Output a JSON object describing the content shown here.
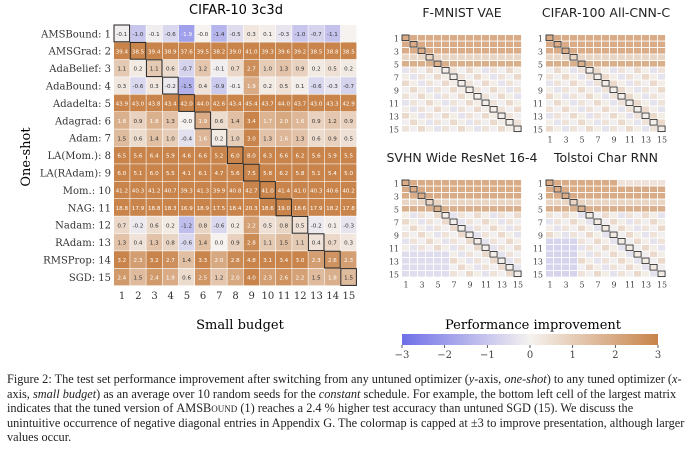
{
  "main_chart": {
    "type": "heatmap",
    "title": "CIFAR-10 3c3d",
    "xlabel": "Small budget",
    "ylabel": "One-shot",
    "x_ticks": [
      "1",
      "2",
      "3",
      "4",
      "5",
      "6",
      "7",
      "8",
      "9",
      "10",
      "11",
      "12",
      "13",
      "14",
      "15"
    ],
    "row_labels": [
      "AMSBound: 1",
      "AMSGrad: 2",
      "AdaBelief: 3",
      "AdaBound: 4",
      "Adadelta: 5",
      "Adagrad: 6",
      "Adam: 7",
      "LA(Mom.): 8",
      "LA(RAdam): 9",
      "Mom.: 10",
      "NAG: 11",
      "Nadam: 12",
      "RAdam: 13",
      "RMSProp: 14",
      "SGD: 15"
    ],
    "values": [
      [
        "-0.1",
        "-1.0",
        "-0.1",
        "-0.6",
        "-1.9",
        "-0.0",
        "-1.4",
        "-0.5",
        "0.3",
        "0.1",
        "-0.3",
        "-1.0",
        "-0.7",
        "-1.1",
        ""
      ],
      [
        "39.4",
        "38.5",
        "39.4",
        "38.9",
        "37.6",
        "39.5",
        "38.2",
        "39.0",
        "41.0",
        "39.3",
        "39.6",
        "39.2",
        "38.5",
        "38.8",
        "38.5"
      ],
      [
        "1.1",
        "0.2",
        "1.1",
        "0.6",
        "-0.7",
        "1.2",
        "-0.1",
        "0.7",
        "2.7",
        "1.0",
        "1.3",
        "0.9",
        "0.2",
        "0.5",
        "0.2"
      ],
      [
        "0.3",
        "-0.6",
        "0.3",
        "-0.2",
        "-1.5",
        "0.4",
        "-0.9",
        "-0.1",
        "1.9",
        "0.2",
        "0.5",
        "0.1",
        "-0.6",
        "-0.3",
        "-0.7"
      ],
      [
        "43.9",
        "43.0",
        "43.8",
        "43.4",
        "42.0",
        "44.0",
        "42.6",
        "43.4",
        "45.4",
        "43.7",
        "44.0",
        "43.7",
        "43.0",
        "43.3",
        "42.9"
      ],
      [
        "1.8",
        "0.9",
        "1.8",
        "1.3",
        "-0.0",
        "1.9",
        "0.6",
        "1.4",
        "3.4",
        "1.7",
        "2.0",
        "1.6",
        "0.9",
        "1.2",
        "0.9"
      ],
      [
        "1.5",
        "0.6",
        "1.4",
        "1.0",
        "-0.4",
        "1.6",
        "0.2",
        "1.0",
        "3.0",
        "1.3",
        "1.6",
        "1.3",
        "0.6",
        "0.9",
        "0.5"
      ],
      [
        "6.5",
        "5.6",
        "6.4",
        "5.9",
        "4.6",
        "6.6",
        "5.2",
        "6.0",
        "8.0",
        "6.3",
        "6.6",
        "6.2",
        "5.6",
        "5.9",
        "5.5"
      ],
      [
        "6.0",
        "5.1",
        "6.0",
        "5.5",
        "4.1",
        "6.1",
        "4.7",
        "5.6",
        "7.5",
        "5.8",
        "6.2",
        "5.8",
        "5.1",
        "5.4",
        "5.0"
      ],
      [
        "41.2",
        "40.3",
        "41.2",
        "40.7",
        "39.3",
        "41.3",
        "39.9",
        "40.8",
        "42.7",
        "41.0",
        "41.4",
        "41.0",
        "40.3",
        "40.6",
        "40.2"
      ],
      [
        "18.8",
        "17.9",
        "18.8",
        "18.3",
        "16.9",
        "18.9",
        "17.5",
        "18.4",
        "20.3",
        "18.6",
        "19.0",
        "18.6",
        "17.9",
        "18.2",
        "17.8"
      ],
      [
        "0.7",
        "-0.2",
        "0.6",
        "0.2",
        "-1.2",
        "0.8",
        "-0.6",
        "0.2",
        "2.2",
        "0.5",
        "0.8",
        "0.5",
        "-0.2",
        "0.1",
        "-0.3"
      ],
      [
        "1.3",
        "0.4",
        "1.3",
        "0.8",
        "-0.6",
        "1.4",
        "0.0",
        "0.9",
        "2.8",
        "1.1",
        "1.5",
        "1.1",
        "0.4",
        "0.7",
        "0.3"
      ],
      [
        "3.2",
        "2.3",
        "3.2",
        "2.7",
        "1.4",
        "3.3",
        "2.0",
        "2.8",
        "4.8",
        "3.1",
        "3.4",
        "3.0",
        "2.3",
        "2.6",
        "2.3"
      ],
      [
        "2.4",
        "1.5",
        "2.4",
        "1.9",
        "0.6",
        "2.5",
        "1.2",
        "2.0",
        "4.0",
        "2.3",
        "2.6",
        "2.2",
        "1.5",
        "1.8",
        "1.5"
      ]
    ],
    "color_range": [
      -3,
      3
    ],
    "diagonal_outlined": true
  },
  "small_charts": [
    {
      "type": "heatmap",
      "title": "F-MNIST VAE",
      "y_ticks": [
        "1",
        "3",
        "5",
        "7",
        "9",
        "11",
        "13",
        "15"
      ],
      "x_ticks": []
    },
    {
      "type": "heatmap",
      "title": "CIFAR-100 All-CNN-C",
      "y_ticks": [
        "1",
        "3",
        "5",
        "7",
        "9",
        "11",
        "13",
        "15"
      ],
      "x_ticks": [
        "1",
        "3",
        "5",
        "7",
        "9",
        "11",
        "13",
        "15"
      ]
    },
    {
      "type": "heatmap",
      "title": "SVHN Wide ResNet 16-4",
      "y_ticks": [
        "1",
        "3",
        "5",
        "7",
        "9",
        "11",
        "13",
        "15"
      ],
      "x_ticks": [
        "1",
        "3",
        "5",
        "7",
        "9",
        "11",
        "13",
        "15"
      ]
    },
    {
      "type": "heatmap",
      "title": "Tolstoi Char RNN",
      "y_ticks": [
        "1",
        "3",
        "5",
        "7",
        "9",
        "11",
        "13",
        "15"
      ],
      "x_ticks": [
        "1",
        "3",
        "5",
        "7",
        "9",
        "11",
        "13",
        "15"
      ]
    }
  ],
  "colorbar": {
    "label": "Performance improvement",
    "ticks": [
      "−3",
      "−2",
      "−1",
      "0",
      "1",
      "2",
      "3"
    ],
    "min_color": "#6f6fe8",
    "mid_color": "#f5f2ef",
    "max_color": "#c8844a"
  },
  "caption": {
    "p1": "Figure 2: The test set performance improvement after switching from any untuned optimizer (",
    "p2": "y",
    "p3": "-axis, ",
    "p4": "one-shot",
    "p5": ") to any tuned optimizer (",
    "p6": "x",
    "p7": "-axis, ",
    "p8": "small budget",
    "p9": ") as an average over 10 random seeds for the ",
    "p10": "constant",
    "p11": " schedule. For example, the bottom left cell of the largest matrix indicates that the tuned version of ",
    "p12": "AMSBound",
    "p13": " (1) reaches a 2.4 % higher test accuracy than untuned SGD (15). We discuss the unintuitive occurrence of negative diagonal entries in Appendix G. The colormap is capped at ±3 to improve presentation, although larger values occur."
  }
}
